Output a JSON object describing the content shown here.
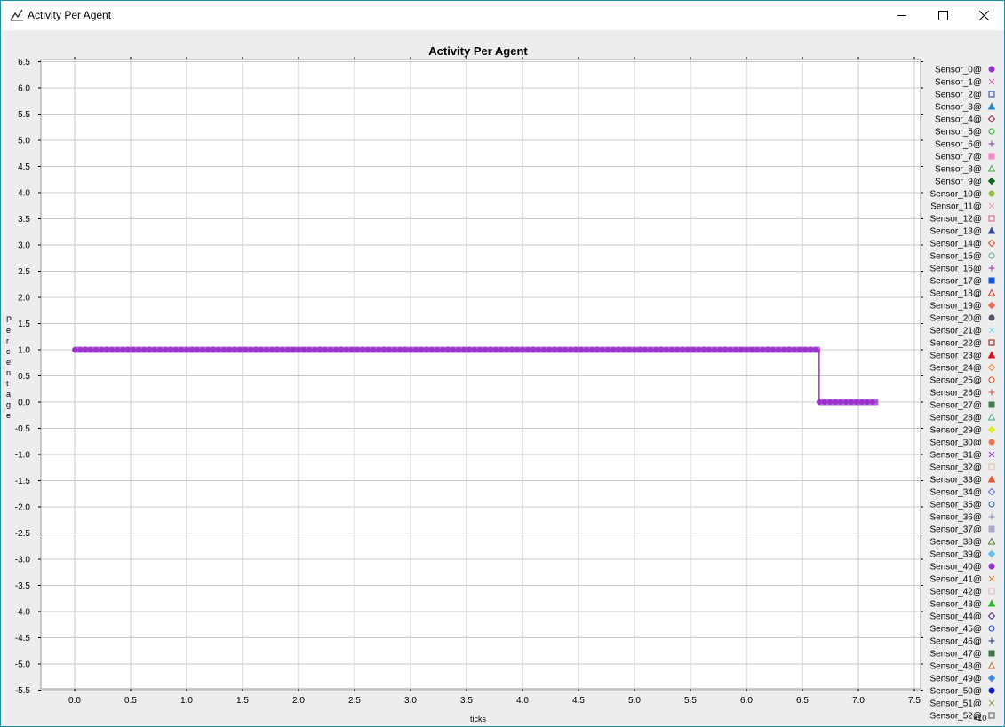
{
  "window": {
    "title": "Activity Per Agent",
    "icon": "chart-app-icon",
    "controls": [
      "minimize-icon",
      "maximize-icon",
      "close-icon"
    ]
  },
  "chart_data": {
    "type": "line",
    "title": "Activity Per Agent",
    "xlabel": "ticks",
    "ylabel": "Percentage",
    "x_exponent_label": "×10",
    "xlim": [
      -0.3,
      7.5
    ],
    "ylim": [
      -5.55,
      6.55
    ],
    "x_ticks": [
      "0.0",
      "0.5",
      "1.0",
      "1.5",
      "2.0",
      "2.5",
      "3.0",
      "3.5",
      "4.0",
      "4.5",
      "5.0",
      "5.5",
      "6.0",
      "6.5",
      "7.0",
      "7.5"
    ],
    "y_ticks": [
      "6.5",
      "6.0",
      "5.5",
      "5.0",
      "4.5",
      "4.0",
      "3.5",
      "3.0",
      "2.5",
      "2.0",
      "1.5",
      "1.0",
      "0.5",
      "0.0",
      "-0.5",
      "-1.0",
      "-1.5",
      "-2.0",
      "-2.5",
      "-3.0",
      "-3.5",
      "-4.0",
      "-4.5",
      "-5.0",
      "-5.5"
    ],
    "grid": true,
    "legend_position": "right",
    "series": [
      {
        "name": "Sensor_0@",
        "color": "#9933cc",
        "marker": "circle",
        "segments": [
          [
            [
              0.0,
              1.0
            ],
            [
              6.65,
              1.0
            ],
            [
              6.65,
              0.0
            ],
            [
              7.17,
              0.0
            ]
          ]
        ]
      }
    ],
    "legend": [
      {
        "name": "Sensor_0@",
        "color": "#9933cc",
        "marker": "circle"
      },
      {
        "name": "Sensor_1@",
        "color": "#e060a0",
        "marker": "x"
      },
      {
        "name": "Sensor_2@",
        "color": "#2244aa",
        "marker": "square-open"
      },
      {
        "name": "Sensor_3@",
        "color": "#2288cc",
        "marker": "triangle"
      },
      {
        "name": "Sensor_4@",
        "color": "#882244",
        "marker": "diamond-open"
      },
      {
        "name": "Sensor_5@",
        "color": "#22aa22",
        "marker": "circle-open"
      },
      {
        "name": "Sensor_6@",
        "color": "#7744aa",
        "marker": "plus"
      },
      {
        "name": "Sensor_7@",
        "color": "#ee88cc",
        "marker": "square"
      },
      {
        "name": "Sensor_8@",
        "color": "#44aa44",
        "marker": "triangle-open"
      },
      {
        "name": "Sensor_9@",
        "color": "#116622",
        "marker": "diamond"
      },
      {
        "name": "Sensor_10@",
        "color": "#99bb44",
        "marker": "circle"
      },
      {
        "name": "Sensor_11@",
        "color": "#ee88cc",
        "marker": "x"
      },
      {
        "name": "Sensor_12@",
        "color": "#dd5577",
        "marker": "square-open"
      },
      {
        "name": "Sensor_13@",
        "color": "#334499",
        "marker": "triangle"
      },
      {
        "name": "Sensor_14@",
        "color": "#dd4422",
        "marker": "diamond-open"
      },
      {
        "name": "Sensor_15@",
        "color": "#55aaaa",
        "marker": "circle-open"
      },
      {
        "name": "Sensor_16@",
        "color": "#aa22aa",
        "marker": "plus"
      },
      {
        "name": "Sensor_17@",
        "color": "#1155dd",
        "marker": "square"
      },
      {
        "name": "Sensor_18@",
        "color": "#cc3322",
        "marker": "triangle-open"
      },
      {
        "name": "Sensor_19@",
        "color": "#ee6655",
        "marker": "diamond"
      },
      {
        "name": "Sensor_20@",
        "color": "#555566",
        "marker": "circle"
      },
      {
        "name": "Sensor_21@",
        "color": "#77ddee",
        "marker": "x"
      },
      {
        "name": "Sensor_22@",
        "color": "#991111",
        "marker": "square-open"
      },
      {
        "name": "Sensor_23@",
        "color": "#dd1122",
        "marker": "triangle"
      },
      {
        "name": "Sensor_24@",
        "color": "#ee8844",
        "marker": "diamond-open"
      },
      {
        "name": "Sensor_25@",
        "color": "#dd4411",
        "marker": "circle-open"
      },
      {
        "name": "Sensor_26@",
        "color": "#ee4444",
        "marker": "plus"
      },
      {
        "name": "Sensor_27@",
        "color": "#447755",
        "marker": "square"
      },
      {
        "name": "Sensor_28@",
        "color": "#44aa88",
        "marker": "triangle-open"
      },
      {
        "name": "Sensor_29@",
        "color": "#ddee22",
        "marker": "diamond"
      },
      {
        "name": "Sensor_30@",
        "color": "#ee7755",
        "marker": "circle"
      },
      {
        "name": "Sensor_31@",
        "color": "#8833cc",
        "marker": "x"
      },
      {
        "name": "Sensor_32@",
        "color": "#ddbbaa",
        "marker": "square-open"
      },
      {
        "name": "Sensor_33@",
        "color": "#ee5533",
        "marker": "triangle"
      },
      {
        "name": "Sensor_34@",
        "color": "#6666dd",
        "marker": "diamond-open"
      },
      {
        "name": "Sensor_35@",
        "color": "#3355aa",
        "marker": "circle-open"
      },
      {
        "name": "Sensor_36@",
        "color": "#8888cc",
        "marker": "plus"
      },
      {
        "name": "Sensor_37@",
        "color": "#aaaacc",
        "marker": "square"
      },
      {
        "name": "Sensor_38@",
        "color": "#557733",
        "marker": "triangle-open"
      },
      {
        "name": "Sensor_39@",
        "color": "#66bbee",
        "marker": "diamond"
      },
      {
        "name": "Sensor_40@",
        "color": "#9933cc",
        "marker": "circle"
      },
      {
        "name": "Sensor_41@",
        "color": "#dd7733",
        "marker": "x"
      },
      {
        "name": "Sensor_42@",
        "color": "#ddaacc",
        "marker": "square-open"
      },
      {
        "name": "Sensor_43@",
        "color": "#22bb22",
        "marker": "triangle"
      },
      {
        "name": "Sensor_44@",
        "color": "#552288",
        "marker": "diamond-open"
      },
      {
        "name": "Sensor_45@",
        "color": "#2244cc",
        "marker": "circle-open"
      },
      {
        "name": "Sensor_46@",
        "color": "#223388",
        "marker": "plus"
      },
      {
        "name": "Sensor_47@",
        "color": "#447744",
        "marker": "square"
      },
      {
        "name": "Sensor_48@",
        "color": "#cc6633",
        "marker": "triangle-open"
      },
      {
        "name": "Sensor_49@",
        "color": "#4488dd",
        "marker": "diamond"
      },
      {
        "name": "Sensor_50@",
        "color": "#1122cc",
        "marker": "circle"
      },
      {
        "name": "Sensor_51@",
        "color": "#889966",
        "marker": "x"
      },
      {
        "name": "Sensor_52@",
        "color": "#555555",
        "marker": "square-open"
      }
    ]
  }
}
